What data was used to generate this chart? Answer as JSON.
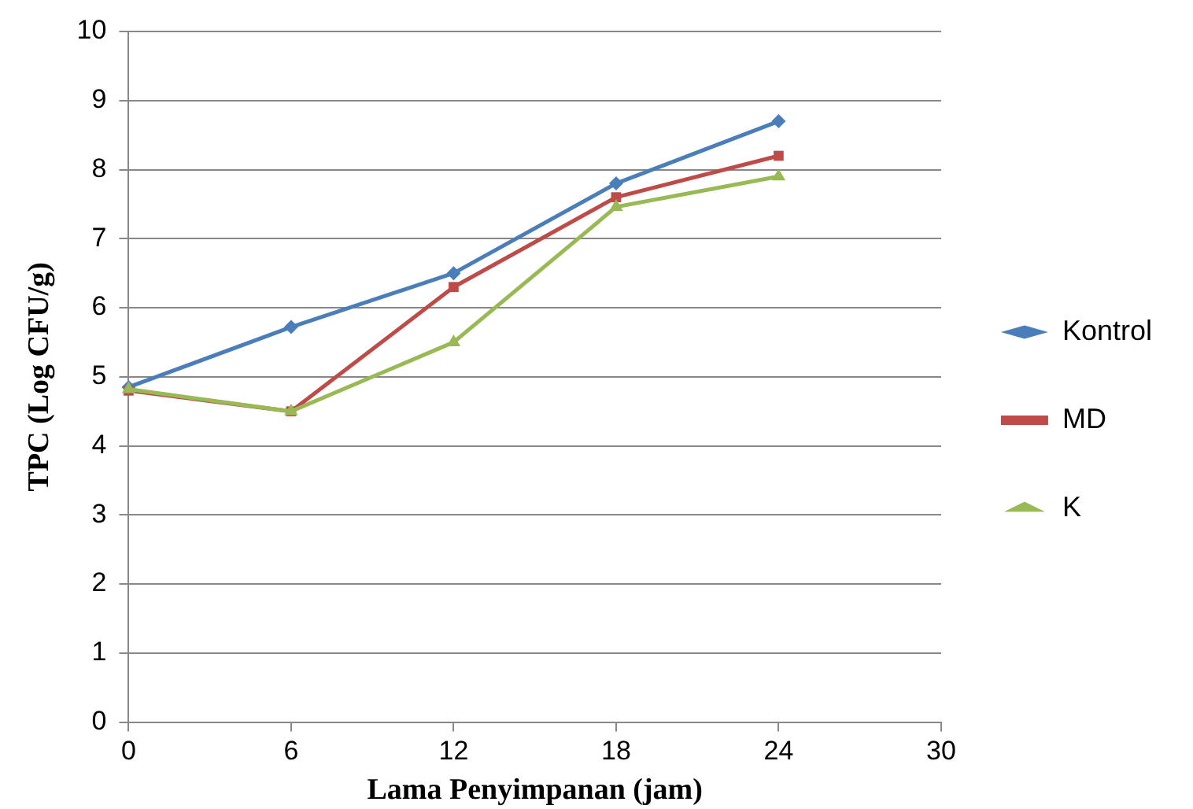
{
  "chart_data": {
    "type": "line",
    "xlabel": "Lama Penyimpanan (jam)",
    "ylabel": "TPC (Log CFU/g)",
    "x": [
      0,
      6,
      12,
      18,
      24
    ],
    "xlim": [
      0,
      30
    ],
    "xticks": [
      0,
      6,
      12,
      18,
      24,
      30
    ],
    "ylim": [
      0,
      10
    ],
    "yticks": [
      0,
      1,
      2,
      3,
      4,
      5,
      6,
      7,
      8,
      9,
      10
    ],
    "grid": "y",
    "legend": "right",
    "line_style": "solid",
    "series": [
      {
        "name": "Kontrol",
        "color": "#4a7ebb",
        "marker": "diamond",
        "values": [
          4.85,
          5.72,
          6.5,
          7.8,
          8.7
        ]
      },
      {
        "name": "MD",
        "color": "#be4b48",
        "marker": "square",
        "values": [
          4.8,
          4.5,
          6.3,
          7.6,
          8.2
        ]
      },
      {
        "name": "K",
        "color": "#98b954",
        "marker": "triangle",
        "values": [
          4.82,
          4.5,
          5.5,
          7.46,
          7.9
        ]
      }
    ]
  }
}
